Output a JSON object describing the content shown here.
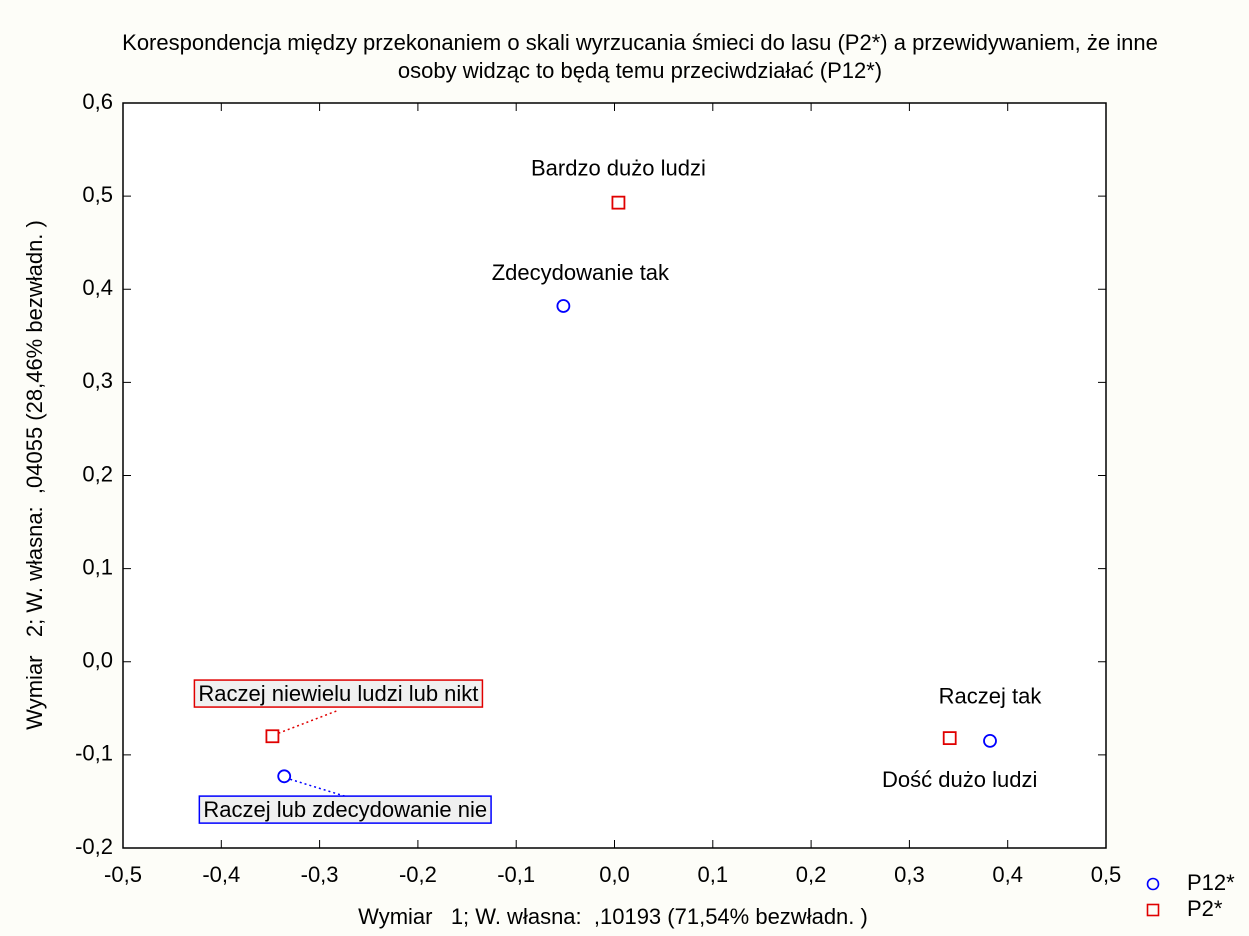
{
  "chart_data": {
    "type": "scatter",
    "title": [
      "Korespondencja między przekonaniem o skali wyrzucania śmieci do lasu (P2*) a przewidywaniem, że inne",
      "osoby widząc to będą temu przeciwdziałać (P12*)"
    ],
    "x_label": "Wymiar   1; W. własna:  ,10193 (71,54% bezwładn. )",
    "y_label": "Wymiar   2; W. własna:  ,04055 (28,46% bezwładn. )",
    "xlim": [
      -0.5,
      0.5
    ],
    "ylim": [
      -0.2,
      0.6
    ],
    "xticks": [
      {
        "value": -0.5,
        "label": "-0,5"
      },
      {
        "value": -0.4,
        "label": "-0,4"
      },
      {
        "value": -0.3,
        "label": "-0,3"
      },
      {
        "value": -0.2,
        "label": "-0,2"
      },
      {
        "value": -0.1,
        "label": "-0,1"
      },
      {
        "value": 0,
        "label": "0,0"
      },
      {
        "value": 0.1,
        "label": "0,1"
      },
      {
        "value": 0.2,
        "label": "0,2"
      },
      {
        "value": 0.3,
        "label": "0,3"
      },
      {
        "value": 0.4,
        "label": "0,4"
      },
      {
        "value": 0.5,
        "label": "0,5"
      }
    ],
    "yticks": [
      {
        "value": -0.2,
        "label": "-0,2"
      },
      {
        "value": -0.1,
        "label": "-0,1"
      },
      {
        "value": 0,
        "label": "0,0"
      },
      {
        "value": 0.1,
        "label": "0,1"
      },
      {
        "value": 0.2,
        "label": "0,2"
      },
      {
        "value": 0.3,
        "label": "0,3"
      },
      {
        "value": 0.4,
        "label": "0,4"
      },
      {
        "value": 0.5,
        "label": "0,5"
      },
      {
        "value": 0.6,
        "label": "0,6"
      }
    ],
    "legend": "bottom-right",
    "series": [
      {
        "name": "P12*",
        "color": "#0000ff",
        "marker": "circle",
        "labels": [
          "Zdecydowanie tak",
          "Raczej tak",
          "Raczej lub zdecydowanie nie"
        ],
        "x": [
          -0.052,
          0.382,
          -0.336
        ],
        "values": [
          0.382,
          -0.085,
          -0.123
        ]
      },
      {
        "name": "P2*",
        "color": "#e00000",
        "marker": "square",
        "labels": [
          "Bardzo dużo ludzi",
          "Dość dużo ludzi",
          "Raczej niewielu ludzi lub nikt"
        ],
        "x": [
          0.004,
          0.341,
          -0.348
        ],
        "values": [
          0.493,
          -0.082,
          -0.08
        ]
      }
    ]
  }
}
